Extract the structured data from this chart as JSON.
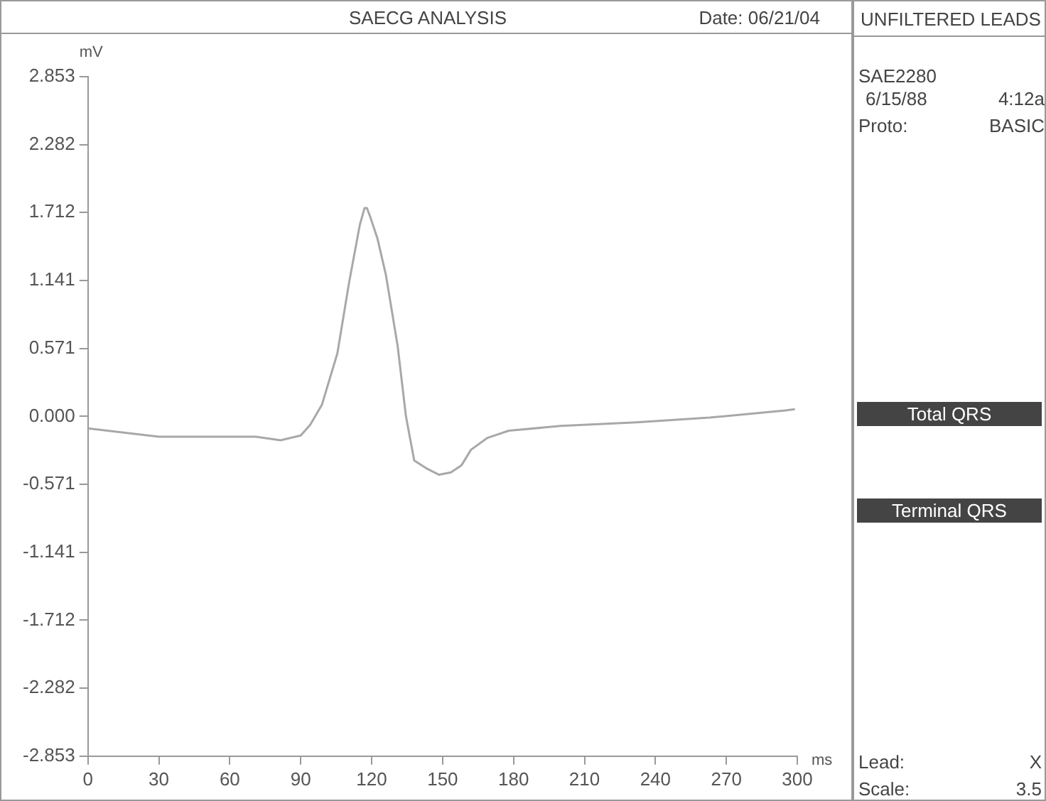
{
  "chart_data": {
    "type": "line",
    "title": "SAECG ANALYSIS",
    "xlabel": "ms",
    "ylabel": "mV",
    "annotations": [
      "Date: 06/21/04",
      "UNFILTERED LEADS",
      "SAE2280",
      "6/15/88",
      "4:12a",
      "Proto:",
      "BASIC",
      "Total QRS",
      "Terminal QRS",
      "Lead:",
      "X",
      "Scale:",
      "3.5"
    ],
    "series": [
      {
        "color": "#a8a8a8",
        "x": [
          0,
          30,
          42,
          71,
          81.5,
          90,
          94,
          99,
          105.5,
          110.5,
          115,
          117,
          118,
          119.5,
          122.5,
          126,
          131,
          134.5,
          138,
          143.5,
          148.5,
          153.5,
          158,
          162,
          169,
          178,
          200,
          232,
          263,
          295,
          299
        ],
        "values": [
          -0.1,
          -0.17,
          -0.17,
          -0.17,
          -0.2,
          -0.16,
          -0.07,
          0.1,
          0.53,
          1.13,
          1.61,
          1.75,
          1.75,
          1.67,
          1.49,
          1.19,
          0.59,
          0,
          -0.37,
          -0.44,
          -0.49,
          -0.47,
          -0.41,
          -0.28,
          -0.18,
          -0.12,
          -0.08,
          -0.05,
          -0.01,
          0.05,
          0.06
        ]
      }
    ],
    "xlim": [
      0,
      300
    ],
    "xticks": [
      0,
      30,
      60,
      90,
      120,
      150,
      180,
      210,
      240,
      270,
      300
    ],
    "ylim": [
      -2.853,
      2.853
    ],
    "yticks": [
      -2.853,
      -2.282,
      -1.712,
      -1.141,
      -0.571,
      {
        "value": 0,
        "label": "0.000"
      },
      0.571,
      1.141,
      1.712,
      2.282,
      2.853
    ],
    "grid": false,
    "legend": false,
    "marker": "none",
    "line_style": "solid"
  }
}
